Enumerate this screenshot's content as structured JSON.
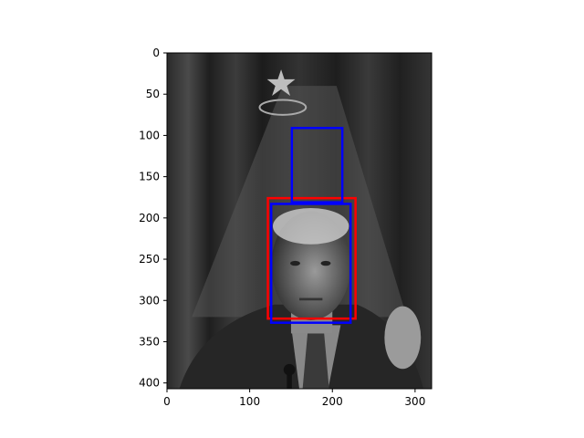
{
  "chart_data": {
    "type": "image-with-bounding-boxes",
    "image": {
      "width": 320,
      "height": 407,
      "grayscale": true,
      "subject": "face-photo"
    },
    "xlim": [
      0,
      320
    ],
    "ylim": [
      407,
      0
    ],
    "y_inverted": true,
    "x_ticks": [
      0,
      100,
      200,
      300
    ],
    "y_ticks": [
      0,
      50,
      100,
      150,
      200,
      250,
      300,
      350,
      400
    ],
    "boxes": [
      {
        "color": "#ff0000",
        "x0": 122,
        "y0": 176,
        "x1": 228,
        "y1": 322
      },
      {
        "color": "#0000ff",
        "x0": 126,
        "y0": 183,
        "x1": 222,
        "y1": 327
      },
      {
        "color": "#0000ff",
        "x0": 151,
        "y0": 91,
        "x1": 212,
        "y1": 181
      }
    ],
    "colors": {
      "red_box": "#ff0000",
      "blue_box": "#0000ff",
      "axis": "#000000"
    }
  }
}
